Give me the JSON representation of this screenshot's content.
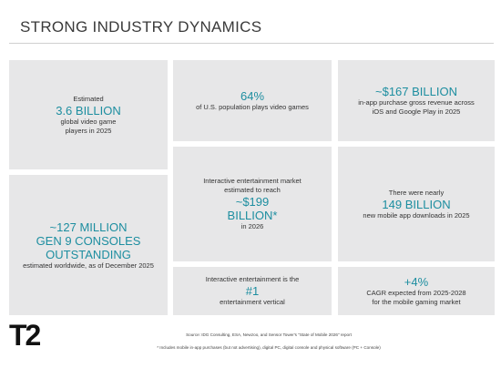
{
  "header": {
    "title": "STRONG INDUSTRY DYNAMICS"
  },
  "tiles": [
    {
      "lines": [
        {
          "text": "Estimated"
        },
        {
          "text": "3.6 BILLION",
          "big": true
        },
        {
          "text": "global video game"
        },
        {
          "text": "players in 2025"
        }
      ]
    },
    {
      "lines": [
        {
          "text": "~127 MILLION",
          "big": true
        },
        {
          "text": "GEN 9 CONSOLES",
          "big": true
        },
        {
          "text": "OUTSTANDING",
          "big": true
        },
        {
          "text": "estimated worldwide, as of December 2025"
        }
      ]
    },
    {
      "lines": [
        {
          "text": "64%",
          "big": true
        },
        {
          "text": "of U.S. population plays video games"
        }
      ]
    },
    {
      "lines": [
        {
          "text": "Interactive entertainment market"
        },
        {
          "text": "estimated to reach"
        },
        {
          "text": "~$199",
          "big": true
        },
        {
          "text": "BILLION*",
          "big": true
        },
        {
          "text": "in 2026"
        }
      ]
    },
    {
      "lines": [
        {
          "text": "Interactive entertainment is the"
        },
        {
          "text": "#1",
          "big": true
        },
        {
          "text": "entertainment vertical"
        }
      ]
    },
    {
      "lines": [
        {
          "text": "~$167 BILLION",
          "big": true
        },
        {
          "text": "in-app purchase gross revenue across"
        },
        {
          "text": "iOS and Google Play in 2025"
        }
      ]
    },
    {
      "lines": [
        {
          "text": "There were nearly"
        },
        {
          "text": "149 BILLION",
          "big": true
        },
        {
          "text": "new mobile app downloads in 2025"
        }
      ]
    },
    {
      "lines": [
        {
          "text": "+4%",
          "big": true
        },
        {
          "text": "CAGR expected from 2025-2028"
        },
        {
          "text": "for the mobile gaming market"
        }
      ]
    }
  ],
  "footer": {
    "source": "Source:  IDG Consulting, ESA, Newzoo, and Sensor Tower's \"State of Mobile 2026\" report",
    "note": "*  Includes mobile in-app purchases (but not advertising), digital PC, digital console and physical software (PC + Console)",
    "logo": "T2"
  }
}
